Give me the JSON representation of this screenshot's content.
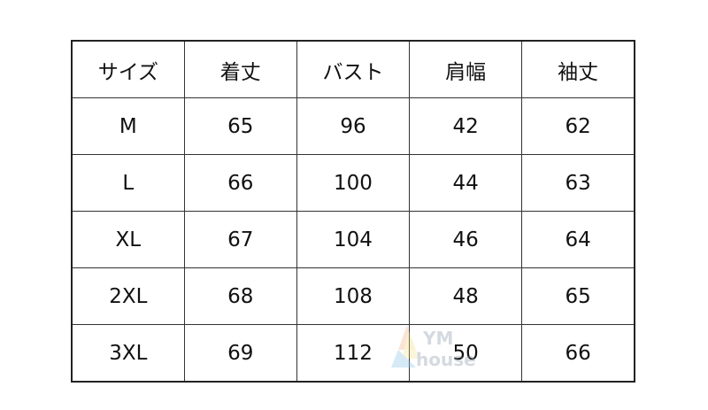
{
  "headers": [
    "サイズ",
    "着丈",
    "バスト",
    "肩幅",
    "袖丈"
  ],
  "rows": [
    [
      "M",
      "65",
      "96",
      "42",
      "62"
    ],
    [
      "L",
      "66",
      "100",
      "44",
      "63"
    ],
    [
      "XL",
      "67",
      "104",
      "46",
      "64"
    ],
    [
      "2XL",
      "68",
      "108",
      "48",
      "65"
    ],
    [
      "3XL",
      "69",
      "112",
      "50",
      "66"
    ]
  ],
  "watermark": {
    "line1": "YM",
    "line2": "house"
  }
}
